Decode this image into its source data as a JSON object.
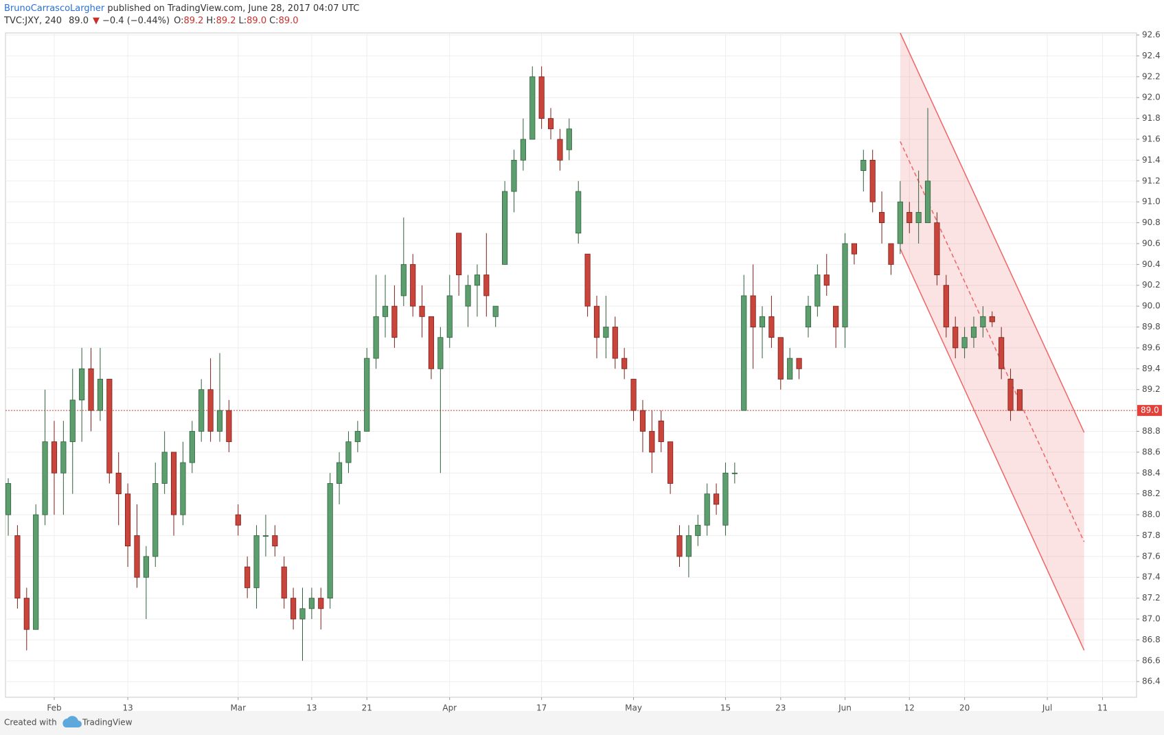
{
  "header": {
    "author": "BrunoCarrascoLargher",
    "published": "published on TradingView.com, June 28, 2017 04:07 UTC",
    "symbol": "TVC:JXY, 240",
    "price": "89.0",
    "change": "−0.4 (−0.44%)",
    "ohlc": [
      {
        "label": "O:",
        "value": "89.2"
      },
      {
        "label": "H:",
        "value": "89.2"
      },
      {
        "label": "L:",
        "value": "89.0"
      },
      {
        "label": "C:",
        "value": "89.0"
      }
    ]
  },
  "footer": {
    "text": "Created with",
    "brand": "TradingView"
  },
  "chart_data": {
    "type": "candlestick",
    "categories": [
      null,
      null,
      null,
      null,
      null,
      "Feb",
      null,
      null,
      null,
      null,
      null,
      null,
      null,
      "13",
      null,
      null,
      null,
      null,
      null,
      null,
      null,
      null,
      null,
      null,
      null,
      "Mar",
      null,
      null,
      null,
      null,
      null,
      null,
      null,
      "13",
      null,
      null,
      null,
      null,
      null,
      "21",
      null,
      null,
      null,
      null,
      null,
      null,
      null,
      null,
      "Apr",
      null,
      null,
      null,
      null,
      null,
      null,
      null,
      null,
      null,
      "17",
      null,
      null,
      null,
      null,
      null,
      null,
      null,
      null,
      null,
      "May",
      null,
      null,
      null,
      null,
      null,
      null,
      null,
      null,
      null,
      "15",
      null,
      null,
      null,
      null,
      null,
      "23",
      null,
      null,
      null,
      null,
      null,
      null,
      "Jun",
      null,
      null,
      null,
      null,
      null,
      null,
      "12",
      null,
      null,
      null,
      null,
      null,
      "20",
      null,
      null,
      null,
      null,
      null,
      null,
      null,
      null,
      "Jul",
      null,
      null,
      null,
      null,
      null,
      "11",
      null,
      null,
      null
    ],
    "open": [
      88.0,
      87.8,
      87.2,
      86.9,
      88.0,
      88.7,
      88.4,
      88.7,
      89.1,
      89.4,
      89.0,
      89.3,
      88.4,
      88.2,
      87.8,
      87.4,
      87.6,
      88.3,
      88.6,
      88.0,
      88.5,
      88.8,
      89.2,
      88.8,
      89.0,
      88.0,
      87.5,
      87.3,
      87.8,
      87.8,
      87.5,
      87.2,
      87.0,
      87.1,
      87.2,
      87.2,
      88.3,
      88.5,
      88.7,
      88.8,
      89.5,
      89.9,
      90.0,
      90.1,
      90.4,
      90.0,
      89.9,
      89.4,
      89.7,
      90.7,
      90.0,
      90.2,
      90.3,
      89.9,
      90.4,
      91.1,
      91.4,
      91.6,
      92.2,
      91.8,
      91.6,
      91.5,
      90.7,
      90.5,
      90.0,
      89.7,
      89.8,
      89.5,
      89.3,
      89.0,
      88.8,
      88.9,
      88.7,
      87.8,
      87.6,
      87.8,
      87.9,
      88.2,
      87.9,
      88.4,
      89.0,
      90.1,
      89.8,
      89.9,
      89.7,
      89.3,
      89.5,
      89.8,
      90.0,
      90.3,
      90.0,
      89.8,
      90.6,
      91.3,
      91.4,
      90.9,
      90.6,
      90.6,
      90.9,
      90.8,
      90.8,
      90.8,
      90.2,
      89.8,
      89.6,
      89.7,
      89.8,
      89.9,
      89.7,
      89.3,
      89.2,
      null,
      null,
      null,
      null,
      null,
      null,
      null,
      null,
      null,
      null,
      null,
      null
    ],
    "high": [
      88.35,
      87.9,
      87.3,
      88.1,
      89.2,
      88.9,
      88.9,
      89.4,
      89.6,
      89.6,
      89.6,
      89.3,
      88.6,
      88.3,
      88.1,
      87.7,
      88.5,
      88.8,
      88.6,
      88.7,
      88.9,
      89.3,
      89.5,
      89.55,
      89.1,
      88.1,
      87.6,
      87.9,
      88.0,
      87.9,
      87.6,
      87.3,
      87.3,
      87.3,
      87.3,
      88.4,
      88.6,
      88.8,
      88.9,
      89.6,
      90.3,
      90.3,
      90.2,
      90.85,
      90.5,
      90.2,
      89.9,
      89.8,
      90.3,
      90.7,
      90.3,
      90.4,
      90.7,
      90.0,
      91.2,
      91.5,
      91.8,
      92.3,
      92.3,
      91.9,
      91.7,
      91.8,
      91.2,
      90.5,
      90.1,
      90.1,
      89.9,
      89.6,
      89.3,
      89.1,
      89.0,
      89.0,
      88.7,
      87.9,
      87.9,
      88.0,
      88.3,
      88.3,
      88.5,
      88.5,
      90.3,
      90.4,
      90.0,
      90.1,
      89.7,
      89.6,
      89.5,
      90.1,
      90.4,
      90.5,
      90.0,
      90.7,
      90.6,
      91.5,
      91.5,
      91.1,
      90.6,
      91.2,
      91.0,
      91.3,
      91.9,
      90.9,
      90.3,
      89.9,
      89.8,
      89.9,
      90.0,
      89.95,
      89.8,
      89.4,
      89.2,
      null,
      null,
      null,
      null,
      null,
      null,
      null,
      null,
      null,
      null,
      null,
      null
    ],
    "low": [
      87.8,
      87.1,
      86.7,
      86.9,
      87.9,
      88.0,
      88.0,
      88.2,
      88.7,
      88.8,
      88.9,
      88.3,
      87.9,
      87.5,
      87.3,
      87.0,
      87.5,
      88.2,
      87.8,
      87.9,
      88.4,
      88.7,
      88.7,
      88.7,
      88.6,
      87.8,
      87.2,
      87.1,
      87.6,
      87.6,
      87.1,
      86.9,
      86.6,
      87.0,
      86.9,
      87.1,
      88.1,
      88.4,
      88.6,
      88.8,
      89.4,
      89.7,
      89.6,
      90.0,
      89.9,
      89.7,
      89.3,
      88.4,
      89.6,
      90.1,
      89.8,
      89.9,
      89.9,
      89.8,
      90.4,
      90.9,
      91.3,
      91.6,
      91.7,
      91.6,
      91.3,
      91.4,
      90.6,
      89.9,
      89.5,
      89.5,
      89.4,
      89.3,
      88.9,
      88.6,
      88.4,
      88.6,
      88.2,
      87.5,
      87.4,
      87.7,
      87.8,
      88.0,
      87.8,
      88.3,
      89.0,
      89.4,
      89.5,
      89.6,
      89.2,
      89.3,
      89.3,
      89.7,
      89.9,
      90.1,
      89.6,
      89.6,
      90.4,
      91.1,
      90.9,
      90.6,
      90.3,
      90.5,
      90.7,
      90.6,
      90.8,
      90.2,
      89.7,
      89.5,
      89.5,
      89.6,
      89.7,
      89.8,
      89.3,
      88.9,
      89.0,
      null,
      null,
      null,
      null,
      null,
      null,
      null,
      null,
      null,
      null,
      null,
      null
    ],
    "close": [
      88.3,
      87.2,
      86.9,
      88.0,
      88.7,
      88.4,
      88.7,
      89.1,
      89.4,
      89.0,
      89.3,
      88.4,
      88.2,
      87.7,
      87.4,
      87.6,
      88.3,
      88.6,
      88.0,
      88.5,
      88.8,
      89.2,
      88.8,
      89.0,
      88.7,
      87.9,
      87.3,
      87.8,
      87.8,
      87.7,
      87.2,
      87.0,
      87.1,
      87.2,
      87.1,
      88.3,
      88.5,
      88.7,
      88.8,
      89.5,
      89.9,
      90.0,
      89.7,
      90.4,
      90.0,
      89.9,
      89.4,
      89.7,
      90.1,
      90.3,
      90.2,
      90.3,
      90.1,
      90.0,
      91.1,
      91.4,
      91.6,
      92.2,
      91.8,
      91.7,
      91.4,
      91.7,
      91.1,
      90.0,
      89.7,
      89.8,
      89.5,
      89.4,
      89.0,
      88.8,
      88.6,
      88.7,
      88.3,
      87.6,
      87.8,
      87.9,
      88.2,
      88.1,
      88.4,
      88.4,
      90.1,
      89.8,
      89.9,
      89.7,
      89.3,
      89.5,
      89.4,
      90.0,
      90.3,
      90.2,
      89.8,
      90.6,
      90.5,
      91.4,
      91.0,
      90.8,
      90.4,
      91.0,
      90.8,
      90.9,
      91.2,
      90.3,
      89.8,
      89.6,
      89.7,
      89.8,
      89.9,
      89.85,
      89.4,
      89.0,
      89.0,
      null,
      null,
      null,
      null,
      null,
      null,
      null,
      null,
      null,
      null,
      null,
      null
    ],
    "up_color": "#5d9e6e",
    "up_border": "#2e5f3a",
    "down_color": "#c9443a",
    "down_border": "#7a1f18",
    "ylim": [
      86.25,
      92.62
    ],
    "yticks": [
      86.4,
      86.6,
      86.8,
      {
        "value": 87.0,
        "label": "87.0"
      },
      87.2,
      87.4,
      87.6,
      87.8,
      {
        "value": 88.0,
        "label": "88.0"
      },
      88.2,
      88.4,
      88.6,
      88.8,
      {
        "value": 89.0,
        "label": "89.0"
      },
      89.2,
      89.4,
      89.6,
      89.8,
      {
        "value": 90.0,
        "label": "90.0"
      },
      90.2,
      90.4,
      90.6,
      90.8,
      {
        "value": 91.0,
        "label": "91.0"
      },
      91.2,
      91.4,
      91.6,
      91.8,
      {
        "value": 92.0,
        "label": "92.0"
      },
      92.2,
      92.4,
      92.6
    ],
    "grid": true,
    "last_price": {
      "value": 89.0,
      "label": "89.0",
      "color": "#e0413a"
    },
    "channel": {
      "x": [
        97,
        117
      ],
      "upper": [
        92.62,
        88.79
      ],
      "middle": [
        91.58,
        87.74
      ],
      "lower": [
        90.55,
        86.7
      ],
      "color": "#f06464"
    }
  }
}
